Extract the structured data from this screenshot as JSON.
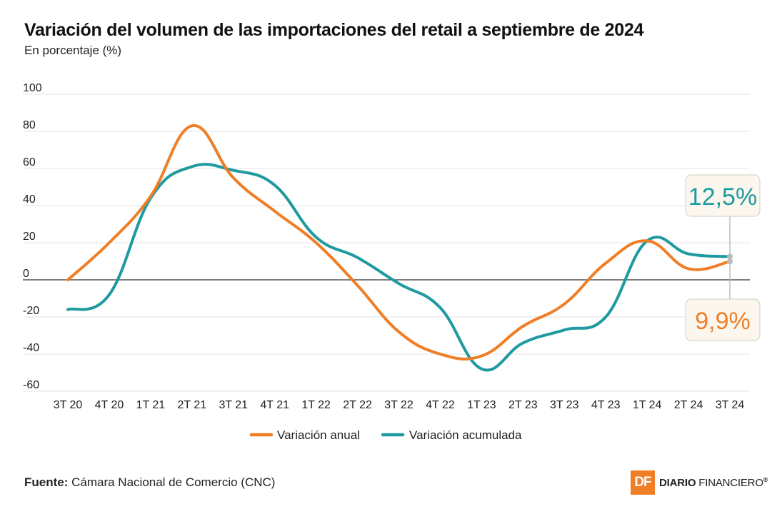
{
  "header": {
    "title": "Variación del volumen de las importaciones del retail a septiembre de 2024",
    "subtitle": "En porcentaje (%)"
  },
  "footer": {
    "source_label": "Fuente:",
    "source_text": "Cámara Nacional de Comercio (CNC)",
    "logo_mark": "DF",
    "logo_word1": "DIARIO",
    "logo_word2": "FINANCIERO",
    "logo_reg": "®"
  },
  "chart_data": {
    "type": "line",
    "title": "Variación del volumen de las importaciones del retail a septiembre de 2024",
    "subtitle": "En porcentaje (%)",
    "ylim": [
      -60,
      100
    ],
    "yticks": [
      100,
      80,
      60,
      40,
      20,
      0,
      -20,
      -40,
      -60
    ],
    "grid": true,
    "legend_position": "bottom-center",
    "categories": [
      "3T 20",
      "4T 20",
      "1T 21",
      "2T 21",
      "3T 21",
      "4T 21",
      "1T 22",
      "2T 22",
      "3T 22",
      "4T 22",
      "1T 23",
      "2T 23",
      "3T 23",
      "4T 23",
      "1T 24",
      "2T 24",
      "3T 24"
    ],
    "series": [
      {
        "name": "Variación anual",
        "color": "#f07e26",
        "values": [
          0,
          20,
          45,
          83,
          55,
          37,
          20,
          -3,
          -28,
          -40,
          -41,
          -25,
          -13,
          9,
          21,
          6,
          9.9
        ]
      },
      {
        "name": "Variación acumulada",
        "color": "#1e9aa0",
        "values": [
          -16,
          -8,
          44,
          61,
          59,
          51,
          23,
          12,
          -2,
          -15,
          -48,
          -34,
          -27,
          -20,
          21,
          14,
          12.5
        ]
      }
    ],
    "annotations": [
      {
        "series": "Variación acumulada",
        "label": "12,5%"
      },
      {
        "series": "Variación anual",
        "label": "9,9%"
      }
    ]
  }
}
